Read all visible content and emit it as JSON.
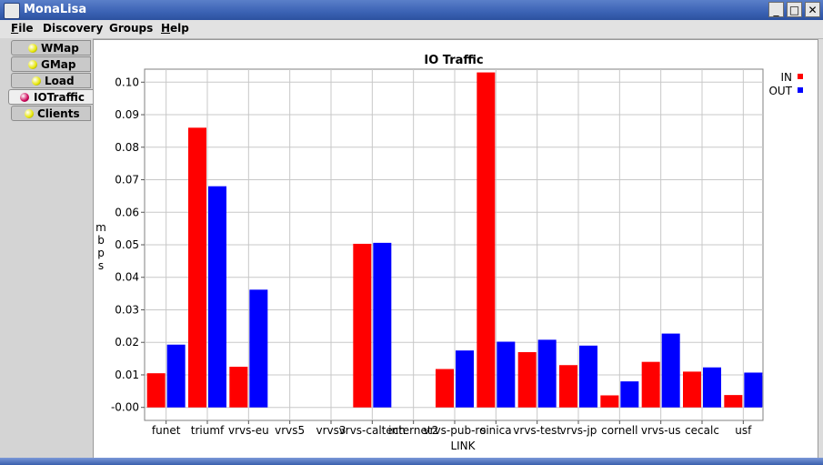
{
  "window": {
    "title": "MonaLisa",
    "controls": [
      "_",
      "□",
      "✕"
    ]
  },
  "menu": [
    {
      "label": "File",
      "mnemonic": "F"
    },
    {
      "label": "Discovery",
      "mnemonic": ""
    },
    {
      "label": "Groups",
      "mnemonic": ""
    },
    {
      "label": "Help",
      "mnemonic": "H"
    }
  ],
  "tabs": [
    {
      "label": "WMap",
      "dot_color": "#e6e600",
      "selected": false
    },
    {
      "label": "GMap",
      "dot_color": "#e6e600",
      "selected": false
    },
    {
      "label": "Load",
      "dot_color": "#e6e600",
      "selected": false
    },
    {
      "label": "IOTraffic",
      "dot_color": "#cc0055",
      "selected": true
    },
    {
      "label": "Clients",
      "dot_color": "#e6e600",
      "selected": false
    }
  ],
  "chart_data": {
    "type": "bar",
    "title": "IO Traffic",
    "xlabel": "LINK",
    "ylabel": "mbps",
    "ylim": [
      -0.004,
      0.104
    ],
    "yticks": [
      0.0,
      0.01,
      0.02,
      0.03,
      0.04,
      0.05,
      0.06,
      0.07,
      0.08,
      0.09,
      0.1
    ],
    "ytick_labels": [
      "-0.00",
      "0.01",
      "0.02",
      "0.03",
      "0.04",
      "0.05",
      "0.06",
      "0.07",
      "0.08",
      "0.09",
      "0.10"
    ],
    "grid": true,
    "legend_position": "top-right",
    "categories": [
      "funet",
      "triumf",
      "vrvs-eu",
      "vrvs5",
      "vrvs3",
      "vrvs-caltech",
      "internet2",
      "vrvs-pub-ro",
      "sinica",
      "vrvs-test",
      "vrvs-jp",
      "cornell",
      "vrvs-us",
      "cecalc",
      "usf"
    ],
    "series": [
      {
        "name": "IN",
        "color": "#ff0000",
        "values": [
          0.0105,
          0.086,
          0.0125,
          0.0,
          0.0,
          0.0503,
          0.0,
          0.0118,
          0.103,
          0.017,
          0.013,
          0.0037,
          0.014,
          0.011,
          0.0038
        ]
      },
      {
        "name": "OUT",
        "color": "#0000ff",
        "values": [
          0.0193,
          0.068,
          0.0362,
          0.0,
          0.0,
          0.0506,
          0.0,
          0.0175,
          0.0202,
          0.0208,
          0.019,
          0.008,
          0.0227,
          0.0123,
          0.0107
        ]
      }
    ]
  }
}
